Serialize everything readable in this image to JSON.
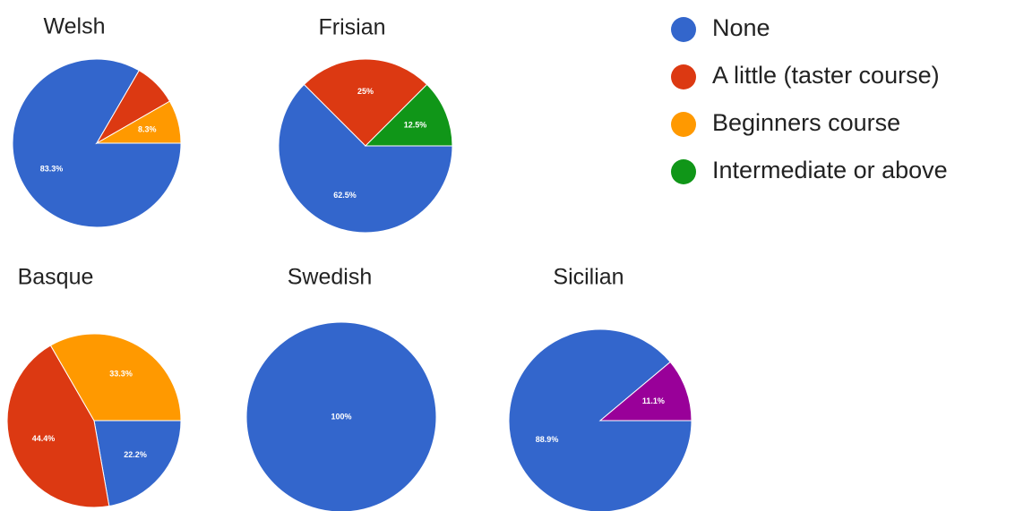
{
  "chart_data": [
    {
      "type": "pie",
      "title": "Welsh",
      "categories": [
        "None",
        "A little (taster course)",
        "Beginners course"
      ],
      "values": [
        83.3,
        8.3,
        8.3
      ],
      "value_labels": [
        "83.3%",
        null,
        "8.3%"
      ],
      "colors": [
        "#3366cc",
        "#dc3912",
        "#ff9900"
      ]
    },
    {
      "type": "pie",
      "title": "Frisian",
      "categories": [
        "None",
        "A little (taster course)",
        "Intermediate or above"
      ],
      "values": [
        62.5,
        25,
        12.5
      ],
      "value_labels": [
        "62.5%",
        "25%",
        "12.5%"
      ],
      "colors": [
        "#3366cc",
        "#dc3912",
        "#109618"
      ]
    },
    {
      "type": "pie",
      "title": "Basque",
      "categories": [
        "None",
        "A little (taster course)",
        "Beginners course"
      ],
      "values": [
        22.2,
        44.4,
        33.3
      ],
      "value_labels": [
        "22.2%",
        "44.4%",
        "33.3%"
      ],
      "colors": [
        "#3366cc",
        "#dc3912",
        "#ff9900"
      ]
    },
    {
      "type": "pie",
      "title": "Swedish",
      "categories": [
        "None"
      ],
      "values": [
        100
      ],
      "value_labels": [
        "100%"
      ],
      "colors": [
        "#3366cc"
      ]
    },
    {
      "type": "pie",
      "title": "Sicilian",
      "categories": [
        "None",
        null
      ],
      "values": [
        88.9,
        11.1
      ],
      "value_labels": [
        "88.9%",
        "11.1%"
      ],
      "colors": [
        "#3366cc",
        "#990099"
      ]
    }
  ],
  "legend": {
    "items": [
      {
        "name": "None",
        "color": "#3366cc"
      },
      {
        "name": "A little (taster course)",
        "color": "#dc3912"
      },
      {
        "name": "Beginners course",
        "color": "#ff9900"
      },
      {
        "name": "Intermediate or above",
        "color": "#109618"
      }
    ]
  }
}
